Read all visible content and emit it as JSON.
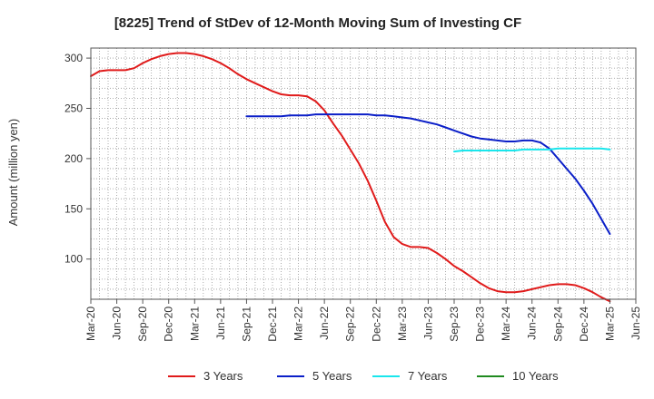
{
  "chart_data": {
    "type": "line",
    "title": "[8225]  Trend of StDev of 12-Month Moving Sum of Investing CF",
    "ylabel": "Amount (million yen)",
    "xlabel": "",
    "ylim": [
      60,
      310
    ],
    "yticks": [
      100,
      150,
      200,
      250,
      300
    ],
    "x_tick_labels": [
      "Mar-20",
      "Jun-20",
      "Sep-20",
      "Dec-20",
      "Mar-21",
      "Jun-21",
      "Sep-21",
      "Dec-21",
      "Mar-22",
      "Jun-22",
      "Sep-22",
      "Dec-22",
      "Mar-23",
      "Jun-23",
      "Sep-23",
      "Dec-23",
      "Mar-24",
      "Jun-24",
      "Sep-24",
      "Dec-24",
      "Mar-25",
      "Jun-25"
    ],
    "grid": true,
    "legend_position": "bottom",
    "series": [
      {
        "name": "3 Years",
        "color": "#e01b1b",
        "x": [
          "Mar-20",
          "Apr-20",
          "May-20",
          "Jun-20",
          "Jul-20",
          "Aug-20",
          "Sep-20",
          "Oct-20",
          "Nov-20",
          "Dec-20",
          "Jan-21",
          "Feb-21",
          "Mar-21",
          "Apr-21",
          "May-21",
          "Jun-21",
          "Jul-21",
          "Aug-21",
          "Sep-21",
          "Oct-21",
          "Nov-21",
          "Dec-21",
          "Jan-22",
          "Feb-22",
          "Mar-22",
          "Apr-22",
          "May-22",
          "Jun-22",
          "Jul-22",
          "Aug-22",
          "Sep-22",
          "Oct-22",
          "Nov-22",
          "Dec-22",
          "Jan-23",
          "Feb-23",
          "Mar-23",
          "Apr-23",
          "May-23",
          "Jun-23",
          "Jul-23",
          "Aug-23",
          "Sep-23",
          "Oct-23",
          "Nov-23",
          "Dec-23",
          "Jan-24",
          "Feb-24",
          "Mar-24",
          "Apr-24",
          "May-24",
          "Jun-24",
          "Jul-24",
          "Aug-24",
          "Sep-24",
          "Oct-24",
          "Nov-24",
          "Dec-24",
          "Jan-25",
          "Feb-25",
          "Mar-25"
        ],
        "values": [
          282,
          287,
          288,
          288,
          288,
          290,
          295,
          299,
          302,
          304,
          305,
          305,
          304,
          302,
          299,
          295,
          290,
          284,
          279,
          275,
          271,
          267,
          264,
          263,
          263,
          262,
          257,
          248,
          235,
          223,
          209,
          195,
          178,
          158,
          137,
          122,
          115,
          112,
          112,
          111,
          106,
          100,
          93,
          88,
          82,
          76,
          71,
          68,
          67,
          67,
          68,
          70,
          72,
          74,
          75,
          75,
          74,
          71,
          67,
          62,
          58
        ]
      },
      {
        "name": "5 Years",
        "color": "#0b1fc8",
        "x": [
          "Sep-21",
          "Oct-21",
          "Nov-21",
          "Dec-21",
          "Jan-22",
          "Feb-22",
          "Mar-22",
          "Apr-22",
          "May-22",
          "Jun-22",
          "Jul-22",
          "Aug-22",
          "Sep-22",
          "Oct-22",
          "Nov-22",
          "Dec-22",
          "Jan-23",
          "Feb-23",
          "Mar-23",
          "Apr-23",
          "May-23",
          "Jun-23",
          "Jul-23",
          "Aug-23",
          "Sep-23",
          "Oct-23",
          "Nov-23",
          "Dec-23",
          "Jan-24",
          "Feb-24",
          "Mar-24",
          "Apr-24",
          "May-24",
          "Jun-24",
          "Jul-24",
          "Aug-24",
          "Sep-24",
          "Oct-24",
          "Nov-24",
          "Dec-24",
          "Jan-25",
          "Feb-25",
          "Mar-25"
        ],
        "values": [
          242,
          242,
          242,
          242,
          242,
          243,
          243,
          243,
          244,
          244,
          244,
          244,
          244,
          244,
          244,
          243,
          243,
          242,
          241,
          240,
          238,
          236,
          234,
          231,
          228,
          225,
          222,
          220,
          219,
          218,
          217,
          217,
          218,
          218,
          216,
          210,
          200,
          190,
          180,
          168,
          155,
          140,
          125
        ]
      },
      {
        "name": "7 Years",
        "color": "#19e6ec",
        "x": [
          "Sep-23",
          "Oct-23",
          "Nov-23",
          "Dec-23",
          "Jan-24",
          "Feb-24",
          "Mar-24",
          "Apr-24",
          "May-24",
          "Jun-24",
          "Jul-24",
          "Aug-24",
          "Sep-24",
          "Oct-24",
          "Nov-24",
          "Dec-24",
          "Jan-25",
          "Feb-25",
          "Mar-25"
        ],
        "values": [
          207,
          208,
          208,
          208,
          208,
          208,
          208,
          208,
          209,
          209,
          209,
          209,
          210,
          210,
          210,
          210,
          210,
          210,
          209
        ]
      },
      {
        "name": "10 Years",
        "color": "#1f8a1f",
        "x": [],
        "values": []
      }
    ]
  }
}
